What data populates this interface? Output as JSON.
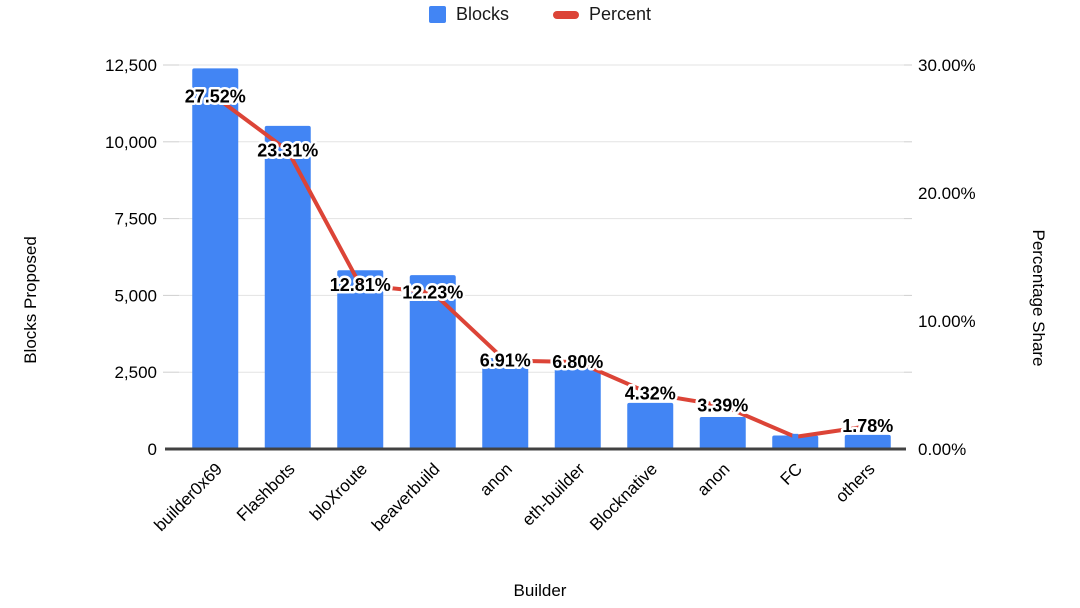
{
  "legend": {
    "items": [
      {
        "label": "Blocks",
        "swatch": "square-icon",
        "color": "#4285F4"
      },
      {
        "label": "Percent",
        "swatch": "dash-icon",
        "color": "#DC4437"
      }
    ]
  },
  "axes": {
    "left": {
      "title": "Blocks Proposed",
      "tick_labels": [
        "0",
        "2,500",
        "5,000",
        "7,500",
        "10,000",
        "12,500"
      ],
      "tick_values": [
        0,
        2500,
        5000,
        7500,
        10000,
        12500
      ],
      "range": [
        0,
        12500
      ]
    },
    "right": {
      "title": "Percentage Share",
      "tick_labels": [
        "0.00%",
        "10.00%",
        "20.00%",
        "30.00%"
      ],
      "tick_values": [
        0,
        10,
        20,
        30
      ],
      "range": [
        0,
        30
      ]
    },
    "x": {
      "title": "Builder"
    }
  },
  "chart_data": {
    "type": "combo",
    "categories": [
      "builder0x69",
      "Flashbots",
      "bloXroute",
      "beaverbuild",
      "anon",
      "eth-builder",
      "Blocknative",
      "anon",
      "FC",
      "others"
    ],
    "series": [
      {
        "name": "Blocks",
        "type": "bar",
        "axis": "left",
        "color": "#4285F4",
        "values": [
          12390,
          10520,
          5820,
          5660,
          2960,
          2800,
          1500,
          1040,
          440,
          460
        ]
      },
      {
        "name": "Percent",
        "type": "line",
        "axis": "right",
        "color": "#DC4437",
        "values": [
          27.52,
          23.31,
          12.81,
          12.23,
          6.91,
          6.8,
          4.32,
          3.39,
          0.95,
          1.78
        ],
        "point_labels": [
          "27.52%",
          "23.31%",
          "12.81%",
          "12.23%",
          "6.91%",
          "6.80%",
          "4.32%",
          "3.39%",
          "",
          "1.78%"
        ]
      }
    ],
    "title": "",
    "xlabel": "Builder",
    "ylabel_left": "Blocks Proposed",
    "ylabel_right": "Percentage Share",
    "ylim_left": [
      0,
      12500
    ],
    "ylim_right": [
      0,
      30
    ],
    "grid": true,
    "legend_position": "top",
    "colors": {
      "grid": "#e3e3e3",
      "baseline": "#424242",
      "tick_text": "#000000",
      "label_text": "#000000",
      "label_outline": "#ffffff"
    }
  }
}
